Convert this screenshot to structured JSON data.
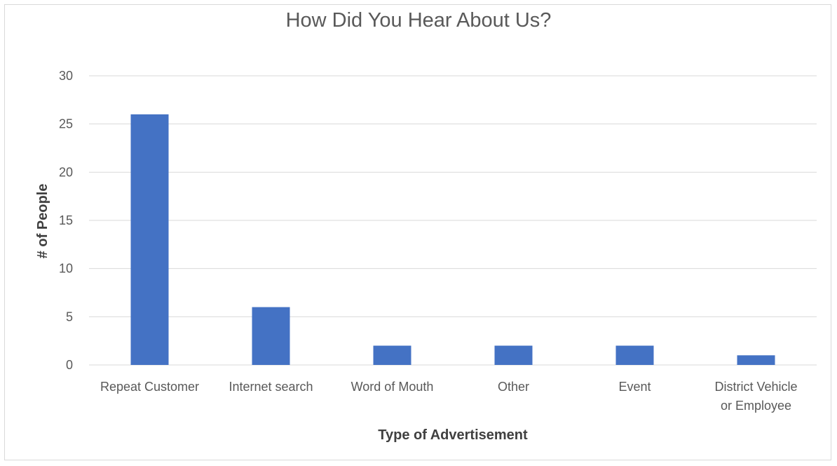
{
  "chart_data": {
    "type": "bar",
    "title": "How Did You Hear About Us?",
    "xlabel": "Type of Advertisement",
    "ylabel": "# of People",
    "categories": [
      [
        "Repeat Customer"
      ],
      [
        "Internet search"
      ],
      [
        "Word of Mouth"
      ],
      [
        "Other"
      ],
      [
        "Event"
      ],
      [
        "District Vehicle",
        "or Employee"
      ]
    ],
    "values": [
      26,
      6,
      2,
      2,
      2,
      1
    ],
    "ylim": [
      0,
      30
    ],
    "yticks": [
      0,
      5,
      10,
      15,
      20,
      25,
      30
    ],
    "grid": true,
    "legend": "none",
    "bar_color": "#4472c4"
  }
}
